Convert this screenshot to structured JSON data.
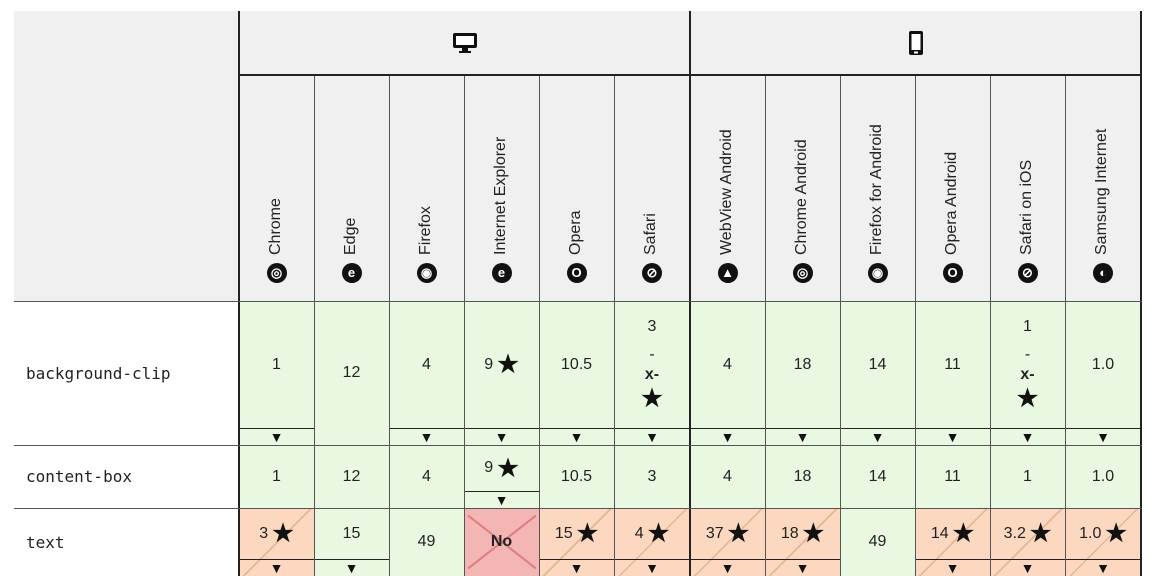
{
  "platforms": [
    {
      "name": "desktop",
      "icon": "desktop-icon"
    },
    {
      "name": "mobile",
      "icon": "mobile-icon"
    }
  ],
  "browsers": [
    {
      "label": "Chrome",
      "icon": "chrome-icon",
      "glyph": "◎"
    },
    {
      "label": "Edge",
      "icon": "edge-icon",
      "glyph": "e"
    },
    {
      "label": "Firefox",
      "icon": "firefox-icon",
      "glyph": "◉"
    },
    {
      "label": "Internet Explorer",
      "icon": "internet-explorer-icon",
      "glyph": "e"
    },
    {
      "label": "Opera",
      "icon": "opera-icon",
      "glyph": "O"
    },
    {
      "label": "Safari",
      "icon": "safari-icon",
      "glyph": "⊘"
    },
    {
      "label": "WebView Android",
      "icon": "android-icon",
      "glyph": "▲"
    },
    {
      "label": "Chrome Android",
      "icon": "chrome-icon",
      "glyph": "◎"
    },
    {
      "label": "Firefox for Android",
      "icon": "firefox-icon",
      "glyph": "◉"
    },
    {
      "label": "Opera Android",
      "icon": "opera-icon",
      "glyph": "O"
    },
    {
      "label": "Safari on iOS",
      "icon": "safari-icon",
      "glyph": "⊘"
    },
    {
      "label": "Samsung Internet",
      "icon": "samsung-internet-icon",
      "glyph": "◐"
    }
  ],
  "rows": [
    {
      "feature": "background-clip",
      "cells": [
        {
          "value": "1",
          "support": "yes",
          "arrow": true
        },
        {
          "value": "12",
          "support": "yes",
          "arrow": false
        },
        {
          "value": "4",
          "support": "yes",
          "arrow": true
        },
        {
          "value": "9",
          "support": "yes",
          "star": true,
          "arrow": true
        },
        {
          "value": "10.5",
          "support": "yes",
          "arrow": true
        },
        {
          "value": "3",
          "support": "yes",
          "prefix_lines": [
            "3",
            "-",
            "x-"
          ],
          "star": true,
          "arrow": true
        },
        {
          "value": "4",
          "support": "yes",
          "arrow": true
        },
        {
          "value": "18",
          "support": "yes",
          "arrow": true
        },
        {
          "value": "14",
          "support": "yes",
          "arrow": true
        },
        {
          "value": "11",
          "support": "yes",
          "arrow": true
        },
        {
          "value": "1",
          "support": "yes",
          "prefix_lines": [
            "1",
            "-",
            "x-"
          ],
          "star": true,
          "arrow": true
        },
        {
          "value": "1.0",
          "support": "yes",
          "arrow": true
        }
      ]
    },
    {
      "feature": "content-box",
      "cells": [
        {
          "value": "1",
          "support": "yes"
        },
        {
          "value": "12",
          "support": "yes"
        },
        {
          "value": "4",
          "support": "yes"
        },
        {
          "value": "9",
          "support": "yes",
          "star": true,
          "arrow": true
        },
        {
          "value": "10.5",
          "support": "yes"
        },
        {
          "value": "3",
          "support": "yes"
        },
        {
          "value": "4",
          "support": "yes"
        },
        {
          "value": "18",
          "support": "yes"
        },
        {
          "value": "14",
          "support": "yes"
        },
        {
          "value": "11",
          "support": "yes"
        },
        {
          "value": "1",
          "support": "yes"
        },
        {
          "value": "1.0",
          "support": "yes"
        }
      ]
    },
    {
      "feature": "text",
      "cells": [
        {
          "value": "3",
          "support": "partial",
          "star": true,
          "arrow": true
        },
        {
          "value": "15",
          "support": "yes",
          "arrow": true
        },
        {
          "value": "49",
          "support": "yes"
        },
        {
          "value": "No",
          "support": "no"
        },
        {
          "value": "15",
          "support": "partial",
          "star": true,
          "arrow": true
        },
        {
          "value": "4",
          "support": "partial",
          "star": true,
          "arrow": true
        },
        {
          "value": "37",
          "support": "partial",
          "star": true,
          "arrow": true
        },
        {
          "value": "18",
          "support": "partial",
          "star": true,
          "arrow": true
        },
        {
          "value": "49",
          "support": "yes"
        },
        {
          "value": "14",
          "support": "partial",
          "star": true,
          "arrow": true
        },
        {
          "value": "3.2",
          "support": "partial",
          "star": true,
          "arrow": true
        },
        {
          "value": "1.0",
          "support": "partial",
          "star": true,
          "arrow": true
        }
      ]
    }
  ],
  "symbols": {
    "star": "★",
    "arrow": "▼"
  },
  "colors": {
    "supported": "#e8f8e1",
    "partial": "#fbd8bf",
    "unsupported": "#f4b5b5",
    "header": "#f0f0f0"
  }
}
